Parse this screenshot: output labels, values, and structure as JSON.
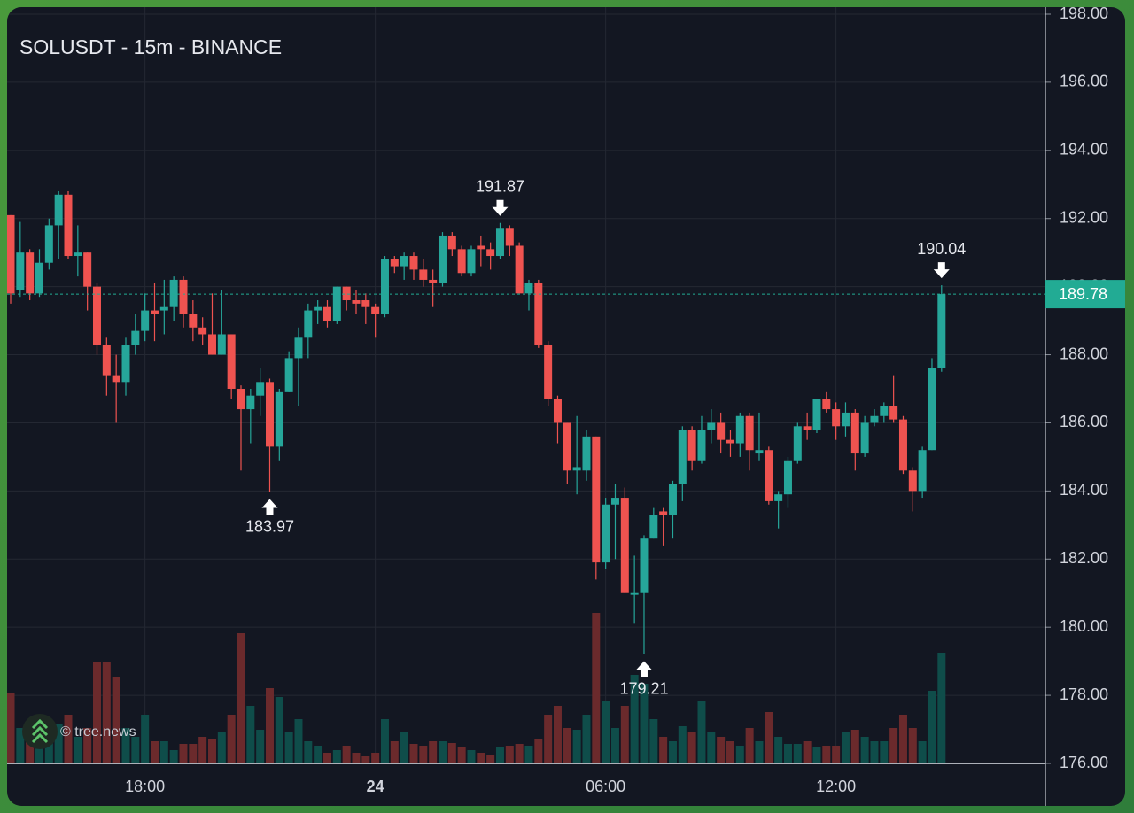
{
  "chart_data": {
    "type": "candlestick",
    "title": "SOLUSDT - 15m - BINANCE",
    "watermark": "© tree.news",
    "categories": [
      null,
      null,
      null,
      null,
      null,
      null,
      null,
      null,
      null,
      null,
      null,
      null,
      null,
      null,
      "18:00",
      null,
      null,
      null,
      null,
      null,
      null,
      null,
      null,
      null,
      null,
      null,
      null,
      null,
      null,
      null,
      null,
      null,
      null,
      null,
      null,
      null,
      null,
      null,
      "24",
      null,
      null,
      null,
      null,
      null,
      null,
      null,
      null,
      null,
      null,
      null,
      null,
      null,
      null,
      null,
      null,
      null,
      null,
      null,
      null,
      null,
      null,
      null,
      "06:00",
      null,
      null,
      null,
      null,
      null,
      null,
      null,
      null,
      null,
      null,
      null,
      null,
      null,
      null,
      null,
      null,
      null,
      null,
      null,
      null,
      null,
      null,
      null,
      "12:00",
      null,
      null,
      null,
      null,
      null,
      null,
      null,
      null,
      null,
      null,
      null
    ],
    "open": [
      192.1,
      189.9,
      191.0,
      189.8,
      190.7,
      191.8,
      192.7,
      190.9,
      191.0,
      190.0,
      188.3,
      187.4,
      187.2,
      188.3,
      188.7,
      189.3,
      189.3,
      189.4,
      190.2,
      189.2,
      188.8,
      188.6,
      188.0,
      188.6,
      187.0,
      186.4,
      186.8,
      187.2,
      185.3,
      186.9,
      187.9,
      188.5,
      189.3,
      189.4,
      189.0,
      190.0,
      189.6,
      189.6,
      189.4,
      189.2,
      190.8,
      190.6,
      190.9,
      190.5,
      190.2,
      190.1,
      191.5,
      191.1,
      190.4,
      191.2,
      191.1,
      190.9,
      191.7,
      191.2,
      189.8,
      190.1,
      188.3,
      186.7,
      186.0,
      184.6,
      184.6,
      185.6,
      181.9,
      183.6,
      183.8,
      180.95,
      181.0,
      182.6,
      183.4,
      183.3,
      184.2,
      185.8,
      184.9,
      185.8,
      186.0,
      185.5,
      185.4,
      186.2,
      185.1,
      185.2,
      183.7,
      183.9,
      184.9,
      185.9,
      185.8,
      186.7,
      186.4,
      185.9,
      186.3,
      185.1,
      186.0,
      186.2,
      186.5,
      186.1,
      184.6,
      184.0,
      185.2,
      187.6
    ],
    "high": [
      192.1,
      191.9,
      191.1,
      191.1,
      192.0,
      192.8,
      192.8,
      191.8,
      191.0,
      190.1,
      188.5,
      188.0,
      188.5,
      189.2,
      189.8,
      190.1,
      190.2,
      190.3,
      190.3,
      189.6,
      189.1,
      189.8,
      189.9,
      188.6,
      187.1,
      187.0,
      187.6,
      187.3,
      187.0,
      188.1,
      188.8,
      189.5,
      189.6,
      189.6,
      190.0,
      190.0,
      189.9,
      189.8,
      189.5,
      190.9,
      190.9,
      191.0,
      191.0,
      190.8,
      190.5,
      191.6,
      191.6,
      191.2,
      191.2,
      191.5,
      191.3,
      191.87,
      191.8,
      191.3,
      190.2,
      190.2,
      188.4,
      186.8,
      186.0,
      186.2,
      185.8,
      185.6,
      183.8,
      184.2,
      184.1,
      182.1,
      182.7,
      183.5,
      183.5,
      184.3,
      185.9,
      185.9,
      186.2,
      186.4,
      186.3,
      185.8,
      186.3,
      186.3,
      186.3,
      185.3,
      184.0,
      185.0,
      186.0,
      186.3,
      186.7,
      186.9,
      186.6,
      186.6,
      186.4,
      186.2,
      186.4,
      186.6,
      187.4,
      186.2,
      184.7,
      185.3,
      187.9,
      190.04
    ],
    "low": [
      189.5,
      189.7,
      189.6,
      189.7,
      190.5,
      190.8,
      190.8,
      190.3,
      189.3,
      188.0,
      186.8,
      186.0,
      186.8,
      188.0,
      188.4,
      188.4,
      188.6,
      189.0,
      188.8,
      188.4,
      188.3,
      188.0,
      188.0,
      186.7,
      184.6,
      185.4,
      186.2,
      183.97,
      184.9,
      186.9,
      186.5,
      187.9,
      188.9,
      188.8,
      188.9,
      189.3,
      189.2,
      188.9,
      188.5,
      189.1,
      190.4,
      190.2,
      190.2,
      190.0,
      189.4,
      190.0,
      190.9,
      190.3,
      190.3,
      190.6,
      190.5,
      190.8,
      190.9,
      189.8,
      189.3,
      188.2,
      186.5,
      185.4,
      184.2,
      183.9,
      184.3,
      181.4,
      181.7,
      182.0,
      181.0,
      180.1,
      179.21,
      182.6,
      182.4,
      182.6,
      183.7,
      184.6,
      184.8,
      185.4,
      185.1,
      185.0,
      185.0,
      184.6,
      184.9,
      183.6,
      182.9,
      183.5,
      184.8,
      185.5,
      185.7,
      186.3,
      185.5,
      185.6,
      184.6,
      185.0,
      185.9,
      186.0,
      186.0,
      184.5,
      183.4,
      183.8,
      185.2,
      187.5
    ],
    "close": [
      189.8,
      191.0,
      189.8,
      190.7,
      191.8,
      192.7,
      190.9,
      191.0,
      190.0,
      188.3,
      187.4,
      187.2,
      188.3,
      188.7,
      189.3,
      189.2,
      189.4,
      190.2,
      189.2,
      188.8,
      188.6,
      188.0,
      188.6,
      187.0,
      186.4,
      186.8,
      187.2,
      185.3,
      186.9,
      187.9,
      188.5,
      189.3,
      189.4,
      189.0,
      190.0,
      189.6,
      189.5,
      189.4,
      189.2,
      190.8,
      190.6,
      190.9,
      190.5,
      190.2,
      190.1,
      191.5,
      191.1,
      190.4,
      191.1,
      191.1,
      190.9,
      191.7,
      191.2,
      189.8,
      190.1,
      188.3,
      186.7,
      186.0,
      184.6,
      184.7,
      185.6,
      181.9,
      183.6,
      183.8,
      181.0,
      181.0,
      182.6,
      183.3,
      183.3,
      184.2,
      185.8,
      184.9,
      185.8,
      186.0,
      185.5,
      185.4,
      186.2,
      185.2,
      185.2,
      183.7,
      183.9,
      184.9,
      185.9,
      185.8,
      186.7,
      186.4,
      185.9,
      186.3,
      185.1,
      186.0,
      186.2,
      186.5,
      186.1,
      184.6,
      184.0,
      185.2,
      187.6,
      189.78
    ],
    "volume": [
      80,
      40,
      30,
      25,
      35,
      45,
      55,
      30,
      40,
      115,
      115,
      98,
      40,
      30,
      55,
      25,
      25,
      15,
      22,
      22,
      30,
      28,
      35,
      55,
      147,
      65,
      38,
      85,
      75,
      35,
      50,
      25,
      20,
      12,
      15,
      20,
      12,
      8,
      12,
      50,
      25,
      35,
      22,
      20,
      25,
      25,
      23,
      18,
      15,
      12,
      10,
      18,
      20,
      22,
      20,
      28,
      55,
      65,
      40,
      38,
      55,
      170,
      70,
      40,
      65,
      100,
      90,
      50,
      30,
      25,
      42,
      35,
      70,
      35,
      30,
      25,
      20,
      40,
      25,
      58,
      30,
      22,
      22,
      25,
      18,
      20,
      20,
      35,
      38,
      30,
      25,
      25,
      40,
      55,
      40,
      25,
      82,
      125
    ],
    "up_color": "#26a69a",
    "down_color": "#ef5350",
    "up_volume_color": "#0f4d4a",
    "down_volume_color": "#6b2a2c",
    "ylim": [
      176,
      198
    ],
    "yticks": [
      {
        "value": 176,
        "label": "176.00"
      },
      {
        "value": 178,
        "label": "178.00"
      },
      {
        "value": 180,
        "label": "180.00"
      },
      {
        "value": 182,
        "label": "182.00"
      },
      {
        "value": 184,
        "label": "184.00"
      },
      {
        "value": 186,
        "label": "186.00"
      },
      {
        "value": 188,
        "label": "188.00"
      },
      {
        "value": 190,
        "label": "190.00"
      },
      {
        "value": 192,
        "label": "192.00"
      },
      {
        "value": 194,
        "label": "194.00"
      },
      {
        "value": 196,
        "label": "196.00"
      },
      {
        "value": 198,
        "label": "198.00"
      }
    ],
    "grid": true,
    "last_price": {
      "value": 189.78,
      "label": "189.78",
      "color": "#22ab94"
    },
    "annotations": [
      {
        "value": 191.87,
        "label": "191.87",
        "field": "high"
      },
      {
        "value": 183.97,
        "label": "183.97",
        "field": "low"
      },
      {
        "value": 179.21,
        "label": "179.21",
        "field": "low"
      },
      {
        "value": 190.04,
        "label": "190.04",
        "field": "high"
      }
    ]
  }
}
